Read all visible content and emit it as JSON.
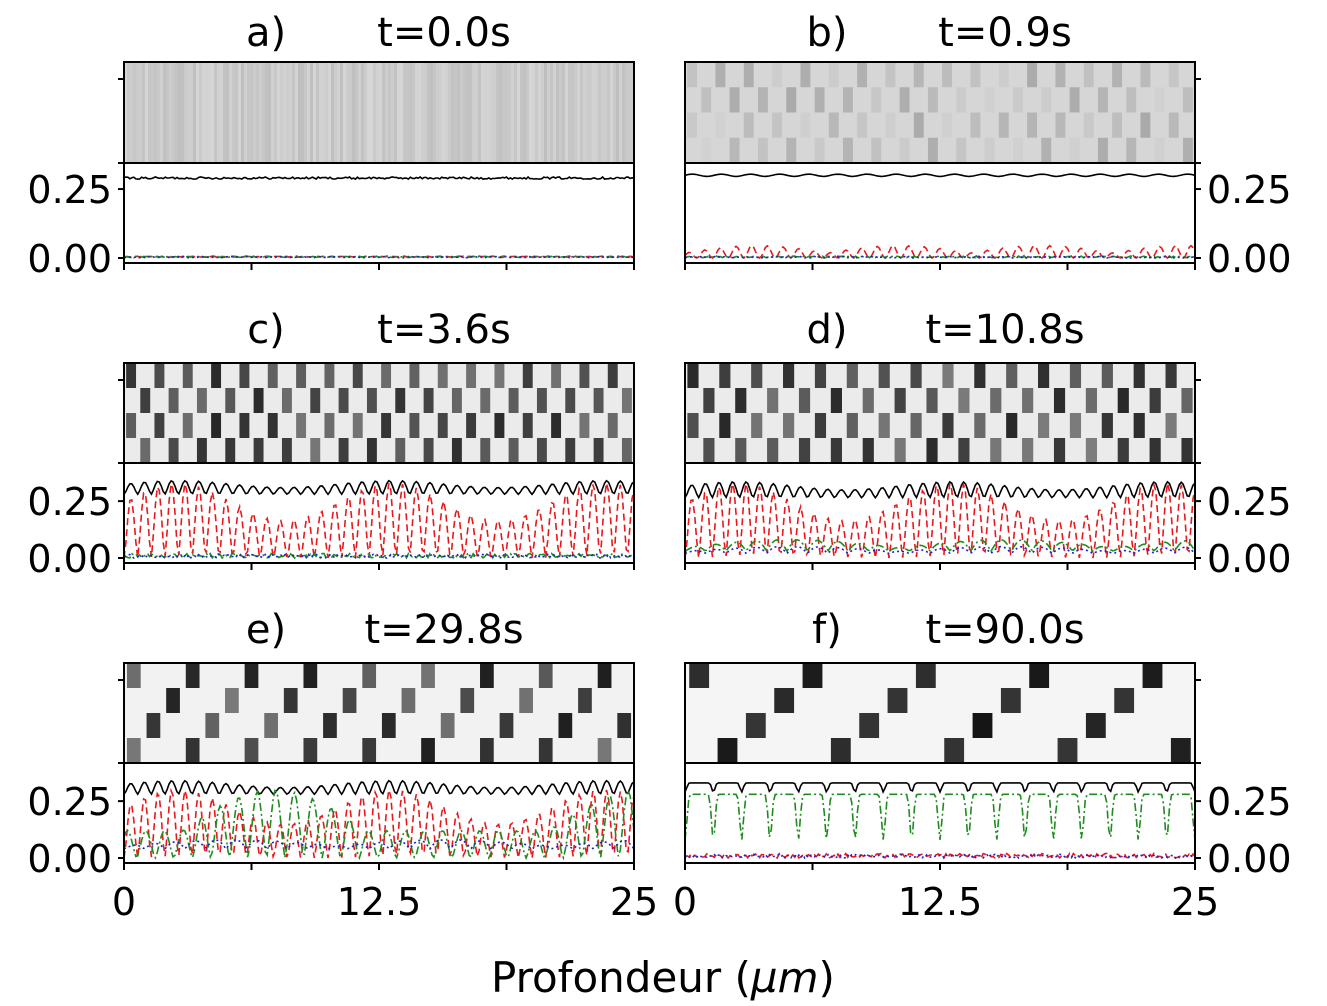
{
  "figure": {
    "xlabel_prefix": "Profondeur (",
    "xlabel_unit": "μm",
    "xlabel_suffix": ")"
  },
  "chart_data": [
    {
      "type": "line",
      "panel": "a)",
      "time": "t=0.0s",
      "x_range": [
        0,
        25
      ],
      "ylim": [
        0,
        0.33
      ],
      "xticks": [
        "0",
        "12.5",
        "25"
      ],
      "yticks": [
        "0.00",
        "0.25"
      ],
      "ytick_side": "left",
      "pattern": "noise",
      "series": [
        {
          "color": "#000000",
          "dash": "solid",
          "level": 0.29,
          "amp": 0.004,
          "kind": "noise"
        },
        {
          "color": "#e8181c",
          "dash": "dashed",
          "level": 0.005,
          "amp": 0.002,
          "kind": "noise"
        },
        {
          "color": "#1e8c1e",
          "dash": "dashdot",
          "level": 0.004,
          "amp": 0.002,
          "kind": "noise"
        },
        {
          "color": "#2020c8",
          "dash": "dotted",
          "level": 0.003,
          "amp": 0.002,
          "kind": "noise"
        }
      ]
    },
    {
      "type": "line",
      "panel": "b)",
      "time": "t=0.9s",
      "x_range": [
        0,
        25
      ],
      "ylim": [
        0,
        0.33
      ],
      "xticks": [
        "0",
        "12.5",
        "25"
      ],
      "yticks": [
        "0.00",
        "0.25"
      ],
      "ytick_side": "right",
      "pattern": "faint",
      "series": [
        {
          "color": "#000000",
          "dash": "solid",
          "level": 0.3,
          "amp": 0.004,
          "kind": "wavy"
        },
        {
          "color": "#e8181c",
          "dash": "dashed",
          "level": 0.0,
          "amp": 0.045,
          "kind": "ripple"
        },
        {
          "color": "#1e8c1e",
          "dash": "dashdot",
          "level": 0.004,
          "amp": 0.003,
          "kind": "noise"
        },
        {
          "color": "#2020c8",
          "dash": "dotted",
          "level": 0.003,
          "amp": 0.003,
          "kind": "noise"
        }
      ]
    },
    {
      "type": "line",
      "panel": "c)",
      "time": "t=3.6s",
      "x_range": [
        0,
        25
      ],
      "ylim": [
        0,
        0.4
      ],
      "xticks": [
        "0",
        "12.5",
        "25"
      ],
      "yticks": [
        "0.00",
        "0.25"
      ],
      "ytick_side": "left",
      "pattern": "fine",
      "series": [
        {
          "color": "#000000",
          "dash": "solid",
          "level": 0.31,
          "amp": 0.06,
          "kind": "osc"
        },
        {
          "color": "#e8181c",
          "dash": "dashed",
          "level": 0.0,
          "amp": 0.33,
          "kind": "osc"
        },
        {
          "color": "#1e8c1e",
          "dash": "dashdot",
          "level": 0.01,
          "amp": 0.01,
          "kind": "noise"
        },
        {
          "color": "#2020c8",
          "dash": "dotted",
          "level": 0.008,
          "amp": 0.008,
          "kind": "noise"
        }
      ]
    },
    {
      "type": "line",
      "panel": "d)",
      "time": "t=10.8s",
      "x_range": [
        0,
        25
      ],
      "ylim": [
        0,
        0.4
      ],
      "xticks": [
        "0",
        "12.5",
        "25"
      ],
      "yticks": [
        "0.00",
        "0.25"
      ],
      "ytick_side": "right",
      "pattern": "mixed",
      "series": [
        {
          "color": "#000000",
          "dash": "solid",
          "level": 0.3,
          "amp": 0.07,
          "kind": "osc"
        },
        {
          "color": "#e8181c",
          "dash": "dashed",
          "level": 0.0,
          "amp": 0.33,
          "kind": "osc"
        },
        {
          "color": "#1e8c1e",
          "dash": "dashdot",
          "level": 0.03,
          "amp": 0.05,
          "kind": "bumps"
        },
        {
          "color": "#2020c8",
          "dash": "dotted",
          "level": 0.02,
          "amp": 0.03,
          "kind": "bumps"
        }
      ]
    },
    {
      "type": "line",
      "panel": "e)",
      "time": "t=29.8s",
      "x_range": [
        0,
        25
      ],
      "ylim": [
        0,
        0.4
      ],
      "xticks": [
        "0",
        "12.5",
        "25"
      ],
      "yticks": [
        "0.00",
        "0.25"
      ],
      "ytick_side": "left",
      "pattern": "coarse",
      "series": [
        {
          "color": "#000000",
          "dash": "solid",
          "level": 0.31,
          "amp": 0.06,
          "kind": "osc"
        },
        {
          "color": "#e8181c",
          "dash": "dashed",
          "level": 0.0,
          "amp": 0.3,
          "kind": "osc"
        },
        {
          "color": "#1e8c1e",
          "dash": "dashdot",
          "level": 0.0,
          "amp": 0.3,
          "kind": "osc2"
        },
        {
          "color": "#2020c8",
          "dash": "dotted",
          "level": 0.04,
          "amp": 0.04,
          "kind": "bumps"
        }
      ]
    },
    {
      "type": "line",
      "panel": "f)",
      "time": "t=90.0s",
      "x_range": [
        0,
        25
      ],
      "ylim": [
        0,
        0.4
      ],
      "xticks": [
        "0",
        "12.5",
        "25"
      ],
      "yticks": [
        "0.00",
        "0.25"
      ],
      "ytick_side": "right",
      "pattern": "ordered",
      "series": [
        {
          "color": "#000000",
          "dash": "solid",
          "level": 0.33,
          "amp": 0.04,
          "kind": "regular"
        },
        {
          "color": "#1e8c1e",
          "dash": "dashdot",
          "level": 0.28,
          "amp": 0.2,
          "kind": "regularDeep"
        },
        {
          "color": "#e8181c",
          "dash": "dashed",
          "level": 0.01,
          "amp": 0.01,
          "kind": "noise"
        },
        {
          "color": "#2020c8",
          "dash": "dotted",
          "level": 0.008,
          "amp": 0.008,
          "kind": "noise"
        }
      ]
    }
  ]
}
